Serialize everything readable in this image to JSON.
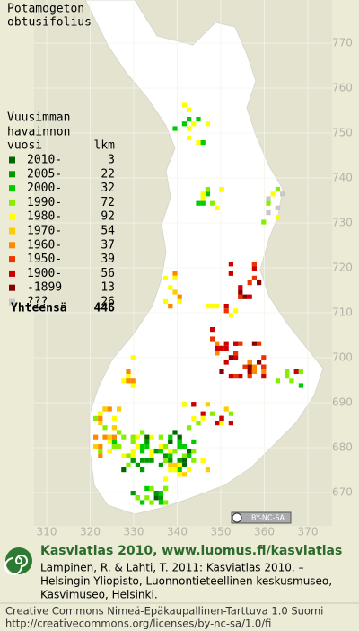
{
  "title": [
    "Potamogeton",
    "obtusifolius"
  ],
  "legend": {
    "heading": [
      "Vuusimman",
      "havainnon"
    ],
    "col_year": "vuosi",
    "col_count": "lkm",
    "items": [
      {
        "label": "2010-",
        "count": 3,
        "color": "#006600"
      },
      {
        "label": "2005-",
        "count": 22,
        "color": "#009900"
      },
      {
        "label": "2000-",
        "count": 32,
        "color": "#00cc00"
      },
      {
        "label": "1990-",
        "count": 72,
        "color": "#88ee00"
      },
      {
        "label": "1980-",
        "count": 92,
        "color": "#ffff00"
      },
      {
        "label": "1970-",
        "count": 54,
        "color": "#ffcc00"
      },
      {
        "label": "1960-",
        "count": 37,
        "color": "#ff8800"
      },
      {
        "label": "1950-",
        "count": 39,
        "color": "#ee3300"
      },
      {
        "label": "1900-",
        "count": 56,
        "color": "#cc0000"
      },
      {
        "label": "-1899",
        "count": 13,
        "color": "#880000"
      },
      {
        "label": "???",
        "count": 26,
        "color": "#c8c8c8"
      }
    ],
    "total_label": "Yhteensä",
    "total": 446
  },
  "grid": {
    "y_labels": [
      770,
      760,
      750,
      740,
      730,
      720,
      710,
      700,
      690,
      680,
      670
    ],
    "x_labels": [
      310,
      320,
      330,
      340,
      350,
      360,
      370
    ]
  },
  "badge": "BY-NC-SA",
  "footer": {
    "site": "Kasviatlas 2010, www.luomus.fi/kasviatlas",
    "citation": [
      "Lampinen, R. & Lahti, T. 2011: Kasviatlas 2010. –",
      "Helsingin Yliopisto, Luonnontieteellinen keskusmuseo,",
      "Kasvimuseo, Helsinki."
    ],
    "license": [
      "Creative Commons Nimeä-Epäkaupallinen-Tarttuva 1.0 Suomi",
      "http://creativecommons.org/licenses/by-nc-sa/1.0/fi"
    ]
  }
}
